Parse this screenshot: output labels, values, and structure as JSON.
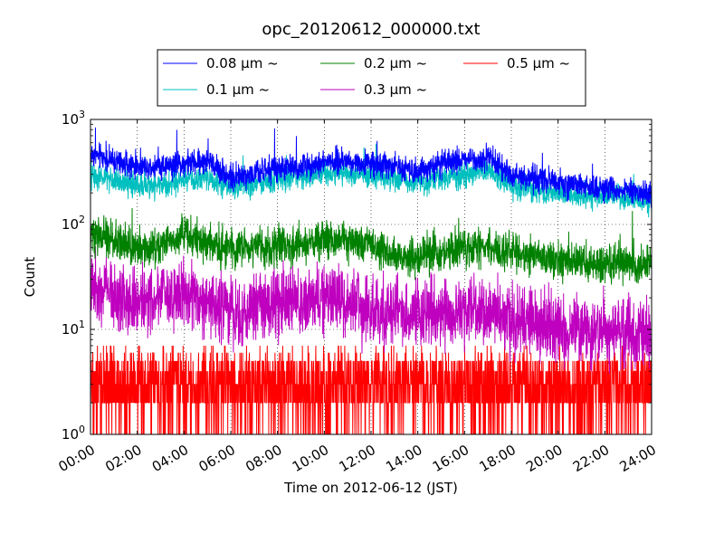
{
  "chart_data": {
    "type": "line",
    "title": "opc_20120612_000000.txt",
    "xlabel": "Time on 2012-06-12 (JST)",
    "ylabel": "Count",
    "x_range_hours": [
      0,
      24
    ],
    "x_ticks": [
      "00:00",
      "02:00",
      "04:00",
      "06:00",
      "08:00",
      "10:00",
      "12:00",
      "14:00",
      "16:00",
      "18:00",
      "20:00",
      "22:00",
      "24:00"
    ],
    "y_scale": "log",
    "ylim": [
      1,
      1000
    ],
    "y_ticks": [
      {
        "base": "10",
        "exp": "0"
      },
      {
        "base": "10",
        "exp": "1"
      },
      {
        "base": "10",
        "exp": "2"
      },
      {
        "base": "10",
        "exp": "3"
      }
    ],
    "grid": true,
    "legend_position": "top",
    "series": [
      {
        "name": "0.08 μm ~",
        "color": "#0000ff",
        "x": [
          0,
          1,
          2,
          3,
          4,
          5,
          6,
          7,
          8,
          9,
          10,
          11,
          12,
          13,
          14,
          15,
          16,
          17,
          18,
          19,
          20,
          21,
          22,
          23,
          24
        ],
        "values": [
          470,
          400,
          360,
          360,
          380,
          400,
          280,
          300,
          340,
          350,
          390,
          400,
          380,
          360,
          330,
          370,
          420,
          430,
          300,
          270,
          250,
          230,
          220,
          210,
          190
        ]
      },
      {
        "name": "0.1 μm ~",
        "color": "#00bfbf",
        "x": [
          0,
          1,
          2,
          3,
          4,
          5,
          6,
          7,
          8,
          9,
          10,
          11,
          12,
          13,
          14,
          15,
          16,
          17,
          18,
          19,
          20,
          21,
          22,
          23,
          24
        ],
        "values": [
          300,
          260,
          230,
          240,
          270,
          280,
          230,
          240,
          270,
          280,
          300,
          310,
          300,
          280,
          250,
          280,
          300,
          320,
          240,
          210,
          200,
          190,
          190,
          180,
          160
        ]
      },
      {
        "name": "0.2 μm ~",
        "color": "#008000",
        "x": [
          0,
          1,
          2,
          3,
          4,
          5,
          6,
          7,
          8,
          9,
          10,
          11,
          12,
          13,
          14,
          15,
          16,
          17,
          18,
          19,
          20,
          21,
          22,
          23,
          24
        ],
        "values": [
          80,
          70,
          60,
          65,
          80,
          65,
          60,
          60,
          62,
          62,
          70,
          68,
          62,
          50,
          48,
          55,
          60,
          60,
          55,
          50,
          48,
          42,
          42,
          45,
          40
        ]
      },
      {
        "name": "0.3 μm ~",
        "color": "#bf00bf",
        "x": [
          0,
          1,
          2,
          3,
          4,
          5,
          6,
          7,
          8,
          9,
          10,
          11,
          12,
          13,
          14,
          15,
          16,
          17,
          18,
          19,
          20,
          21,
          22,
          23,
          24
        ],
        "values": [
          28,
          22,
          18,
          20,
          22,
          16,
          14,
          16,
          18,
          18,
          20,
          18,
          15,
          14,
          14,
          14,
          15,
          14,
          12,
          11,
          10,
          10,
          10,
          9,
          9
        ]
      },
      {
        "name": "0.5 μm ~",
        "color": "#ff0000",
        "x": [
          0,
          1,
          2,
          3,
          4,
          5,
          6,
          7,
          8,
          9,
          10,
          11,
          12,
          13,
          14,
          15,
          16,
          17,
          18,
          19,
          20,
          21,
          22,
          23,
          24
        ],
        "values": [
          2.5,
          2.5,
          2.5,
          2.5,
          2.5,
          2.5,
          2.2,
          2.2,
          2.2,
          2.2,
          2.3,
          2.3,
          2.2,
          2.2,
          2.2,
          2.2,
          2.2,
          2.2,
          2,
          2,
          2,
          2,
          2,
          2,
          2
        ]
      }
    ]
  }
}
